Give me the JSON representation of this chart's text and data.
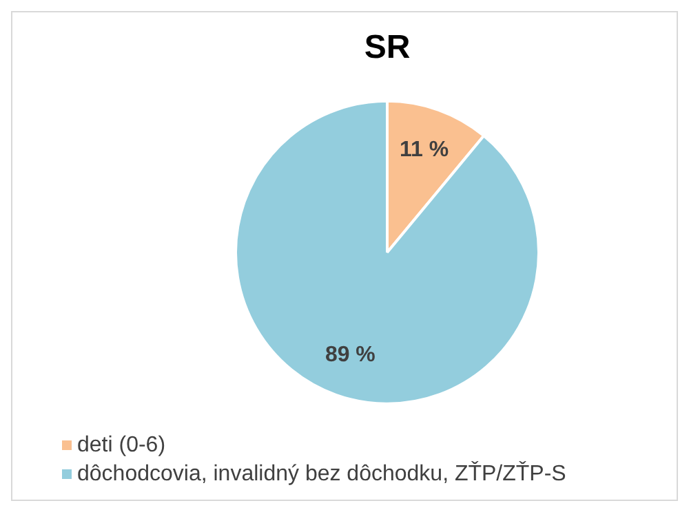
{
  "chart_data": {
    "type": "pie",
    "title": "SR",
    "categories": [
      "deti (0-6)",
      "dôchodcovia, invalidný bez dôchodku, ZŤP/ZŤP-S"
    ],
    "values": [
      11,
      89
    ],
    "colors": [
      "#fac090",
      "#93cddd"
    ],
    "value_labels": [
      "11 %",
      "89 %"
    ],
    "legend": "bottom left"
  }
}
